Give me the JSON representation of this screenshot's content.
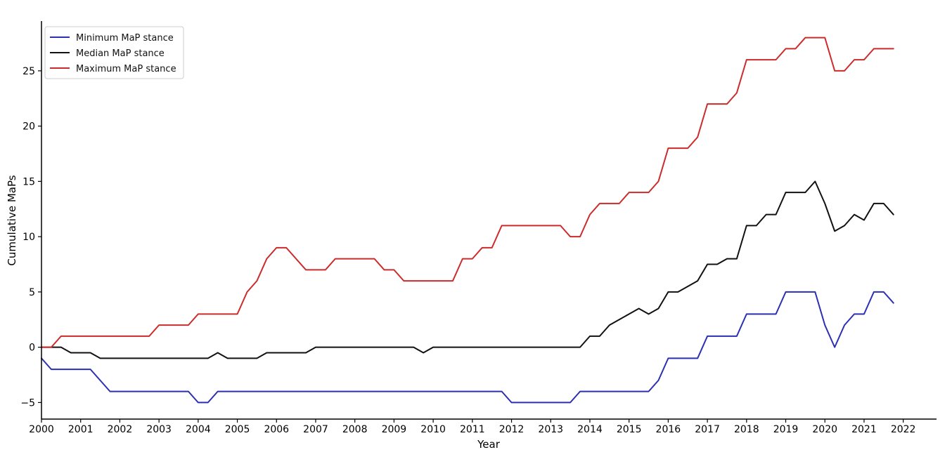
{
  "chart_data": {
    "type": "line",
    "title": "",
    "xlabel": "Year",
    "ylabel": "Cumulative MaPs",
    "xlim": [
      2000,
      2022.85
    ],
    "ylim": [
      -6.5,
      29.5
    ],
    "x_ticks": [
      2000,
      2001,
      2002,
      2003,
      2004,
      2005,
      2006,
      2007,
      2008,
      2009,
      2010,
      2011,
      2012,
      2013,
      2014,
      2015,
      2016,
      2017,
      2018,
      2019,
      2020,
      2021,
      2022
    ],
    "x_tick_labels": [
      "2000",
      "2001",
      "2002",
      "2003",
      "2004",
      "2005",
      "2006",
      "2007",
      "2008",
      "2009",
      "2010",
      "2011",
      "2012",
      "2013",
      "2014",
      "2015",
      "2016",
      "2017",
      "2018",
      "2019",
      "2020",
      "2021",
      "2022"
    ],
    "y_ticks": [
      -5,
      0,
      5,
      10,
      15,
      20,
      25
    ],
    "y_tick_labels": [
      "−5",
      "0",
      "5",
      "10",
      "15",
      "20",
      "25"
    ],
    "grid": false,
    "legend_position": "top-left",
    "series": [
      {
        "name": "Minimum MaP stance",
        "color": "#2b2fb3",
        "points": [
          [
            2000.0,
            -1
          ],
          [
            2000.25,
            -2
          ],
          [
            2001.25,
            -2
          ],
          [
            2001.75,
            -4
          ],
          [
            2003.75,
            -4
          ],
          [
            2004.0,
            -5
          ],
          [
            2004.25,
            -5
          ],
          [
            2004.5,
            -4
          ],
          [
            2011.75,
            -4
          ],
          [
            2012.0,
            -5
          ],
          [
            2013.5,
            -5
          ],
          [
            2013.75,
            -4
          ],
          [
            2015.5,
            -4
          ],
          [
            2015.75,
            -3
          ],
          [
            2016.0,
            -1
          ],
          [
            2016.75,
            -1
          ],
          [
            2017.0,
            1
          ],
          [
            2017.75,
            1
          ],
          [
            2018.0,
            3
          ],
          [
            2018.75,
            3
          ],
          [
            2019.0,
            5
          ],
          [
            2019.75,
            5
          ],
          [
            2020.0,
            2
          ],
          [
            2020.25,
            0
          ],
          [
            2020.5,
            2
          ],
          [
            2020.75,
            3
          ],
          [
            2021.0,
            3
          ],
          [
            2021.25,
            5
          ],
          [
            2021.5,
            5
          ],
          [
            2021.75,
            4
          ]
        ]
      },
      {
        "name": "Median MaP stance",
        "color": "#111111",
        "points": [
          [
            2000.0,
            0
          ],
          [
            2000.5,
            0
          ],
          [
            2000.75,
            -0.5
          ],
          [
            2001.25,
            -0.5
          ],
          [
            2001.5,
            -1
          ],
          [
            2004.25,
            -1
          ],
          [
            2004.5,
            -0.5
          ],
          [
            2004.75,
            -1
          ],
          [
            2005.5,
            -1
          ],
          [
            2005.75,
            -0.5
          ],
          [
            2006.75,
            -0.5
          ],
          [
            2007.0,
            0
          ],
          [
            2009.5,
            0
          ],
          [
            2009.75,
            -0.5
          ],
          [
            2010.0,
            0
          ],
          [
            2013.75,
            0
          ],
          [
            2014.0,
            1
          ],
          [
            2014.25,
            1
          ],
          [
            2014.5,
            2
          ],
          [
            2014.75,
            2.5
          ],
          [
            2015.0,
            3
          ],
          [
            2015.25,
            3.5
          ],
          [
            2015.5,
            3
          ],
          [
            2015.75,
            3.5
          ],
          [
            2016.0,
            5
          ],
          [
            2016.25,
            5
          ],
          [
            2016.5,
            5.5
          ],
          [
            2016.75,
            6
          ],
          [
            2017.0,
            7.5
          ],
          [
            2017.25,
            7.5
          ],
          [
            2017.5,
            8
          ],
          [
            2017.75,
            8
          ],
          [
            2018.0,
            11
          ],
          [
            2018.25,
            11
          ],
          [
            2018.5,
            12
          ],
          [
            2018.75,
            12
          ],
          [
            2019.0,
            14
          ],
          [
            2019.5,
            14
          ],
          [
            2019.75,
            15
          ],
          [
            2020.0,
            13
          ],
          [
            2020.25,
            10.5
          ],
          [
            2020.5,
            11
          ],
          [
            2020.75,
            12
          ],
          [
            2021.0,
            11.5
          ],
          [
            2021.25,
            13
          ],
          [
            2021.5,
            13
          ],
          [
            2021.75,
            12
          ]
        ]
      },
      {
        "name": "Maximum MaP stance",
        "color": "#cc2b2b",
        "points": [
          [
            2000.0,
            0
          ],
          [
            2000.25,
            0
          ],
          [
            2000.5,
            1
          ],
          [
            2002.75,
            1
          ],
          [
            2003.0,
            2
          ],
          [
            2003.75,
            2
          ],
          [
            2004.0,
            3
          ],
          [
            2005.0,
            3
          ],
          [
            2005.25,
            5
          ],
          [
            2005.5,
            6
          ],
          [
            2005.75,
            8
          ],
          [
            2006.0,
            9
          ],
          [
            2006.25,
            9
          ],
          [
            2006.75,
            7
          ],
          [
            2007.25,
            7
          ],
          [
            2007.5,
            8
          ],
          [
            2008.5,
            8
          ],
          [
            2008.75,
            7
          ],
          [
            2009.0,
            7
          ],
          [
            2009.25,
            6
          ],
          [
            2010.5,
            6
          ],
          [
            2010.75,
            8
          ],
          [
            2011.0,
            8
          ],
          [
            2011.25,
            9
          ],
          [
            2011.5,
            9
          ],
          [
            2011.75,
            11
          ],
          [
            2013.25,
            11
          ],
          [
            2013.5,
            10
          ],
          [
            2013.75,
            10
          ],
          [
            2014.0,
            12
          ],
          [
            2014.25,
            13
          ],
          [
            2014.75,
            13
          ],
          [
            2015.0,
            14
          ],
          [
            2015.5,
            14
          ],
          [
            2015.75,
            15
          ],
          [
            2016.0,
            18
          ],
          [
            2016.5,
            18
          ],
          [
            2016.75,
            19
          ],
          [
            2017.0,
            22
          ],
          [
            2017.5,
            22
          ],
          [
            2017.75,
            23
          ],
          [
            2018.0,
            26
          ],
          [
            2018.75,
            26
          ],
          [
            2019.0,
            27
          ],
          [
            2019.25,
            27
          ],
          [
            2019.5,
            28
          ],
          [
            2020.0,
            28
          ],
          [
            2020.25,
            25
          ],
          [
            2020.5,
            25
          ],
          [
            2020.75,
            26
          ],
          [
            2021.0,
            26
          ],
          [
            2021.25,
            27
          ],
          [
            2021.75,
            27
          ]
        ]
      }
    ]
  }
}
